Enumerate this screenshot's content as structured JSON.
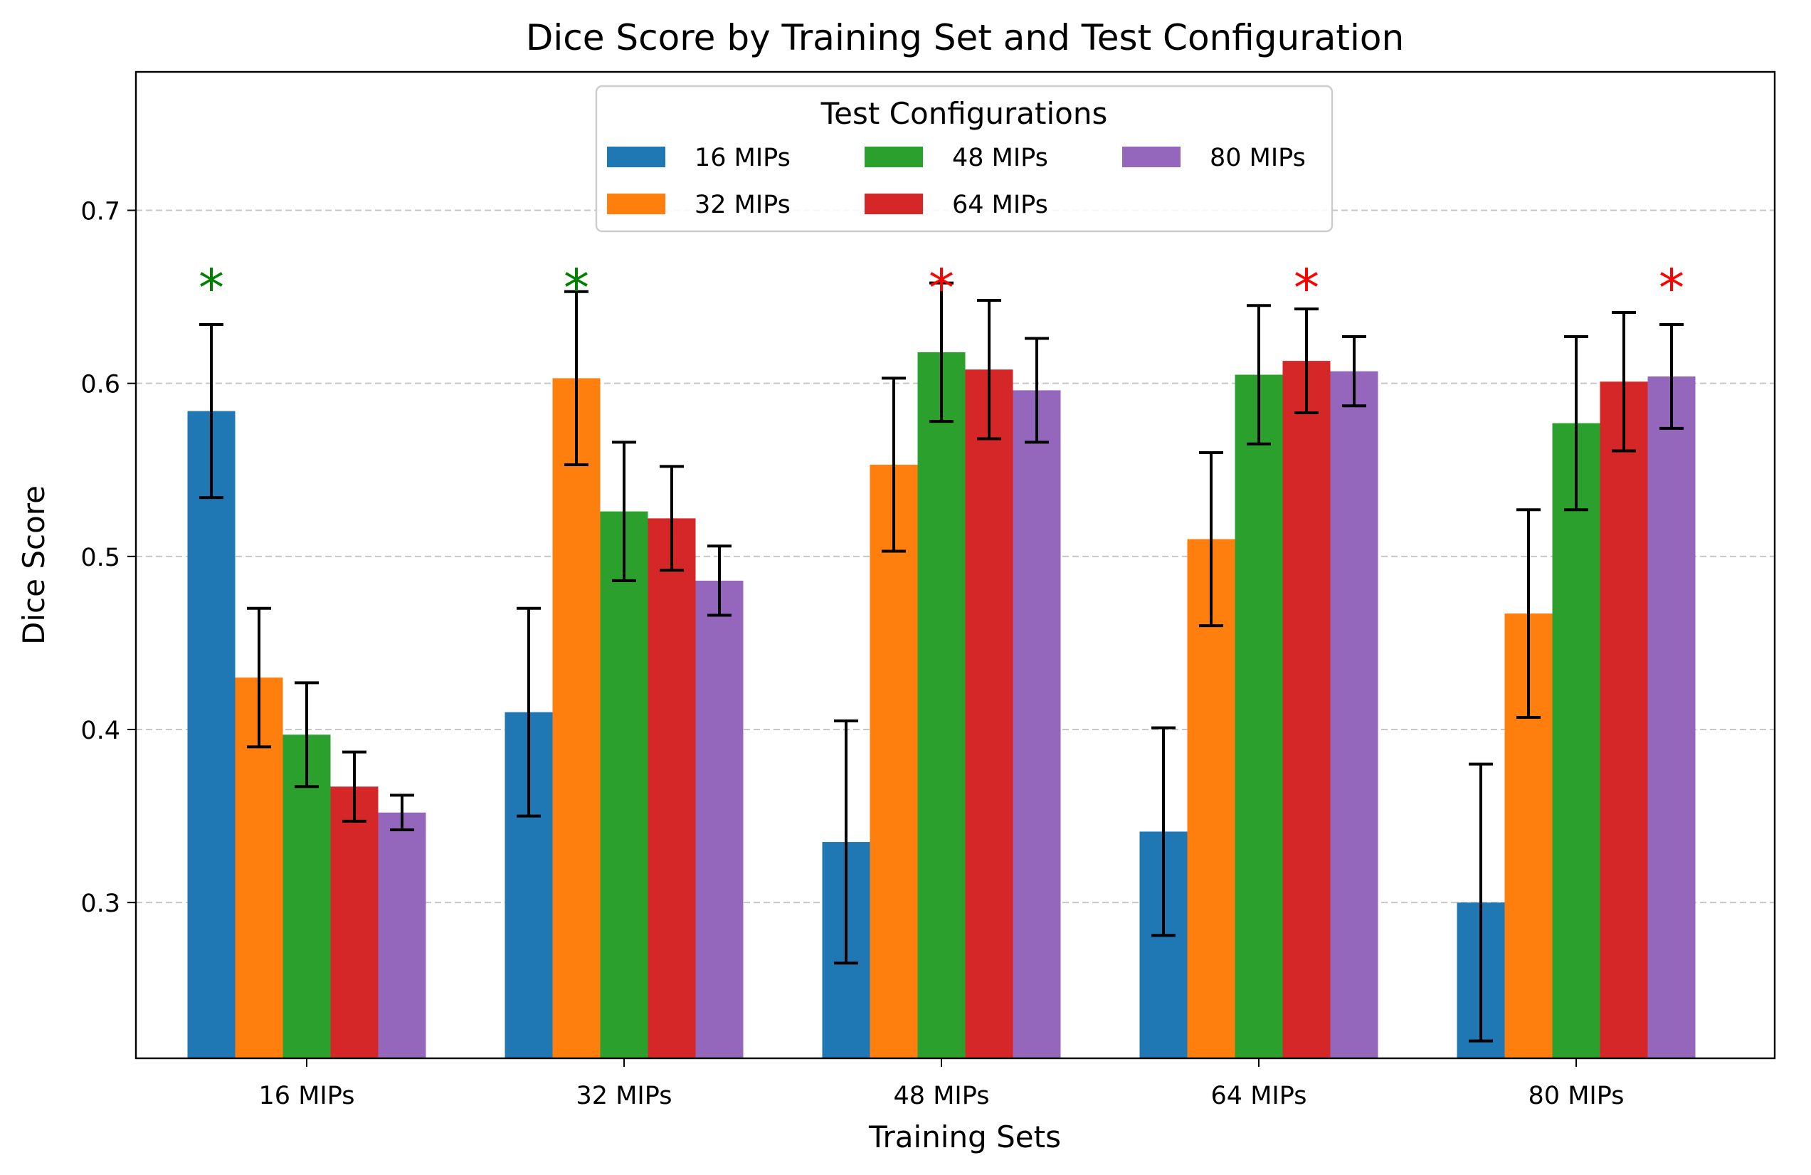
{
  "chart_data": {
    "type": "bar",
    "title": "Dice Score by Training Set and Test Configuration",
    "xlabel": "Training Sets",
    "ylabel": "Dice Score",
    "ylim": [
      0.21,
      0.78
    ],
    "yticks": [
      0.3,
      0.4,
      0.5,
      0.6,
      0.7
    ],
    "ytick_labels": [
      "0.3",
      "0.4",
      "0.5",
      "0.6",
      "0.7"
    ],
    "grid": "horizontal dashed",
    "categories": [
      "16 MIPs",
      "32 MIPs",
      "48 MIPs",
      "64 MIPs",
      "80 MIPs"
    ],
    "legend": {
      "title": "Test Configurations",
      "placement": "upper-center",
      "columns": 3
    },
    "series": [
      {
        "name": "16 MIPs",
        "color": "#1f77b4",
        "values": [
          0.584,
          0.41,
          0.335,
          0.341,
          0.3
        ],
        "errors": [
          0.05,
          0.06,
          0.07,
          0.06,
          0.08
        ]
      },
      {
        "name": "32 MIPs",
        "color": "#ff7f0e",
        "values": [
          0.43,
          0.603,
          0.553,
          0.51,
          0.467
        ],
        "errors": [
          0.04,
          0.05,
          0.05,
          0.05,
          0.06
        ]
      },
      {
        "name": "48 MIPs",
        "color": "#2ca02c",
        "values": [
          0.397,
          0.526,
          0.618,
          0.605,
          0.577
        ],
        "errors": [
          0.03,
          0.04,
          0.04,
          0.04,
          0.05
        ]
      },
      {
        "name": "64 MIPs",
        "color": "#d62728",
        "values": [
          0.367,
          0.522,
          0.608,
          0.613,
          0.601
        ],
        "errors": [
          0.02,
          0.03,
          0.04,
          0.03,
          0.04
        ]
      },
      {
        "name": "80 MIPs",
        "color": "#9467bd",
        "values": [
          0.352,
          0.486,
          0.596,
          0.607,
          0.604
        ],
        "errors": [
          0.01,
          0.02,
          0.03,
          0.02,
          0.03
        ]
      }
    ],
    "annotations": [
      {
        "category": "16 MIPs",
        "series": "16 MIPs",
        "text": "*",
        "color": "#008000"
      },
      {
        "category": "32 MIPs",
        "series": "32 MIPs",
        "text": "*",
        "color": "#008000"
      },
      {
        "category": "48 MIPs",
        "series": "48 MIPs",
        "text": "*",
        "color": "#ff0000"
      },
      {
        "category": "64 MIPs",
        "series": "64 MIPs",
        "text": "*",
        "color": "#ff0000"
      },
      {
        "category": "80 MIPs",
        "series": "80 MIPs",
        "text": "*",
        "color": "#ff0000"
      }
    ]
  }
}
